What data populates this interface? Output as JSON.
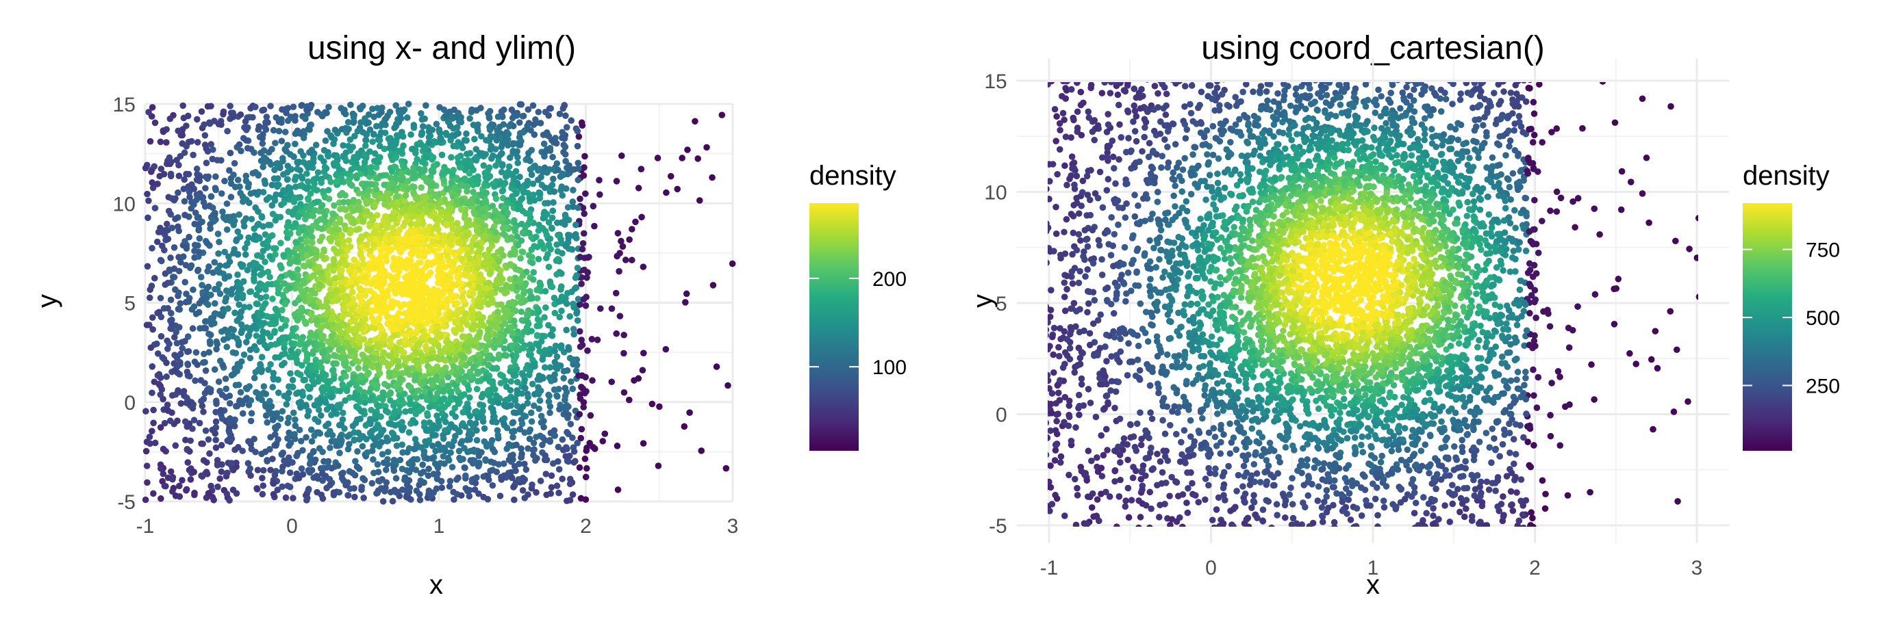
{
  "chart_data": [
    {
      "type": "scatter",
      "title": "using x- and ylim()",
      "xlabel": "x",
      "ylabel": "y",
      "xlim": [
        -1,
        3
      ],
      "ylim": [
        -5,
        15
      ],
      "x_ticks": [
        -1,
        0,
        1,
        2,
        3
      ],
      "y_ticks": [
        -5,
        0,
        5,
        10,
        15
      ],
      "grid": true,
      "color_by": "density",
      "colormap": "viridis",
      "legend": {
        "title": "density",
        "position": "right",
        "range": [
          5,
          285
        ],
        "ticks": [
          100,
          200
        ]
      },
      "density_peak": {
        "x": 0.8,
        "y": 6.0
      },
      "points_shown": "about 6000 points, uniform-looking spread over x from -1 to 2, sparse tail up to x = 3",
      "colors": {
        "low": "#440154",
        "mid": "#21918c",
        "high": "#fde725"
      }
    },
    {
      "type": "scatter",
      "title": "using coord_cartesian()",
      "xlabel": "x",
      "ylabel": "y",
      "xlim": [
        -1.2,
        3.2
      ],
      "ylim": [
        -5.8,
        16
      ],
      "x_ticks": [
        -1,
        0,
        1,
        2,
        3
      ],
      "y_ticks": [
        -5,
        0,
        5,
        10,
        15
      ],
      "grid": true,
      "color_by": "density",
      "colormap": "viridis",
      "legend": {
        "title": "density",
        "position": "right",
        "range": [
          10,
          920
        ],
        "ticks": [
          250,
          500,
          750
        ]
      },
      "density_peak": {
        "x": 0.85,
        "y": 6.0
      },
      "points_shown": "about 7000 points, continuing past the panel edges",
      "colors": {
        "low": "#440154",
        "mid": "#21918c",
        "high": "#fde725"
      }
    }
  ]
}
